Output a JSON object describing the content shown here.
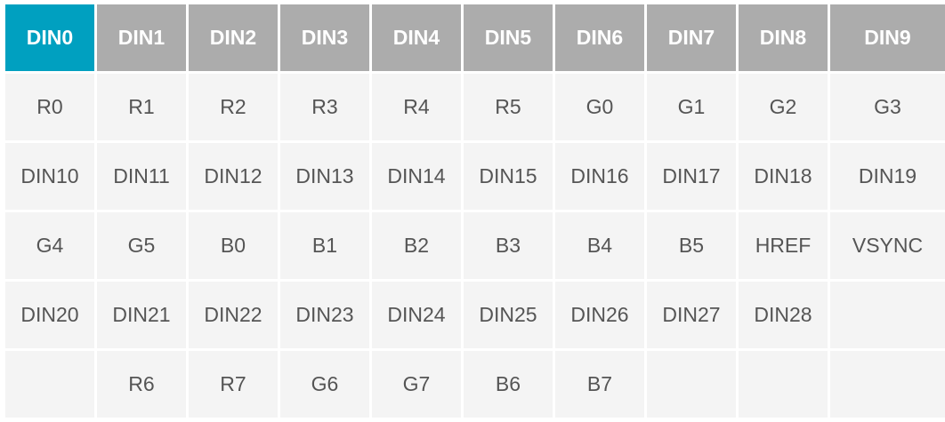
{
  "active_color": "#00a0c0",
  "header": [
    "DIN0",
    "DIN1",
    "DIN2",
    "DIN3",
    "DIN4",
    "DIN5",
    "DIN6",
    "DIN7",
    "DIN8",
    "DIN9"
  ],
  "active_index": 0,
  "rows": [
    [
      "R0",
      "R1",
      "R2",
      "R3",
      "R4",
      "R5",
      "G0",
      "G1",
      "G2",
      "G3"
    ],
    [
      "DIN10",
      "DIN11",
      "DIN12",
      "DIN13",
      "DIN14",
      "DIN15",
      "DIN16",
      "DIN17",
      "DIN18",
      "DIN19"
    ],
    [
      "G4",
      "G5",
      "B0",
      "B1",
      "B2",
      "B3",
      "B4",
      "B5",
      "HREF",
      "VSYNC"
    ],
    [
      "DIN20",
      "DIN21",
      "DIN22",
      "DIN23",
      "DIN24",
      "DIN25",
      "DIN26",
      "DIN27",
      "DIN28",
      ""
    ],
    [
      "",
      "R6",
      "R7",
      "G6",
      "G7",
      "B6",
      "B7",
      "",
      "",
      ""
    ]
  ]
}
